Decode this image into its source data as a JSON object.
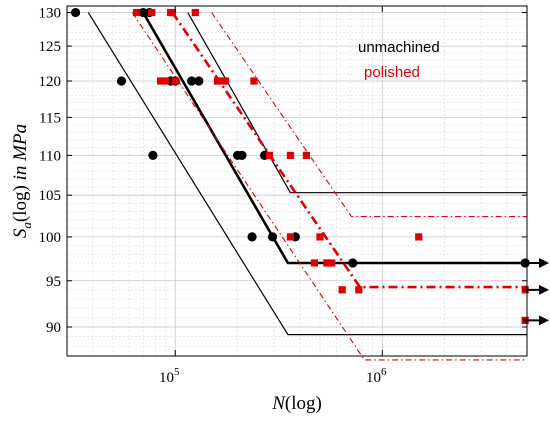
{
  "chart_data": {
    "type": "scatter",
    "title": "",
    "xlabel": "N(log)",
    "ylabel": "S_a(log) in MPa",
    "x_scale": "log",
    "y_scale": "log",
    "xlim": [
      30000,
      5000000
    ],
    "ylim": [
      87,
      131
    ],
    "x_ticks": [
      {
        "value": 100000,
        "base": "10",
        "exp": "5"
      },
      {
        "value": 1000000,
        "base": "10",
        "exp": "6"
      }
    ],
    "y_ticks": [
      90,
      95,
      100,
      105,
      110,
      115,
      120,
      125,
      130
    ],
    "grid": true,
    "legend_position": "top-right",
    "series": [
      {
        "name": "unmachined",
        "color": "#000000",
        "marker": "circle",
        "points": [
          [
            33000,
            130
          ],
          [
            55000,
            120
          ],
          [
            70000,
            130
          ],
          [
            75000,
            130
          ],
          [
            78000,
            110
          ],
          [
            95000,
            120
          ],
          [
            100000,
            120
          ],
          [
            120000,
            120
          ],
          [
            130000,
            120
          ],
          [
            200000,
            110
          ],
          [
            210000,
            110
          ],
          [
            235000,
            100
          ],
          [
            270000,
            110
          ],
          [
            295000,
            100
          ],
          [
            380000,
            100
          ],
          [
            720000,
            97
          ],
          [
            4900000,
            97
          ]
        ],
        "curves": [
          {
            "role": "median",
            "style": "solid",
            "width": 2.6,
            "points": [
              [
                70000,
                130
              ],
              [
                350000,
                97
              ],
              [
                5000000,
                97
              ]
            ]
          },
          {
            "role": "lower",
            "style": "solid",
            "width": 1.2,
            "points": [
              [
                38000,
                130
              ],
              [
                350000,
                89.2
              ],
              [
                5000000,
                89.2
              ]
            ]
          },
          {
            "role": "upper",
            "style": "solid",
            "width": 1.2,
            "points": [
              [
                115000,
                130
              ],
              [
                360000,
                105.3
              ],
              [
                5000000,
                105.3
              ]
            ]
          }
        ]
      },
      {
        "name": "polished",
        "color": "#e00000",
        "marker": "square",
        "points": [
          [
            65000,
            130
          ],
          [
            77000,
            130
          ],
          [
            95000,
            130
          ],
          [
            97000,
            130
          ],
          [
            125000,
            130
          ],
          [
            85000,
            120
          ],
          [
            90000,
            120
          ],
          [
            100000,
            120
          ],
          [
            160000,
            120
          ],
          [
            168000,
            120
          ],
          [
            175000,
            120
          ],
          [
            240000,
            120
          ],
          [
            285000,
            110
          ],
          [
            360000,
            110
          ],
          [
            430000,
            110
          ],
          [
            360000,
            100
          ],
          [
            500000,
            100
          ],
          [
            470000,
            97
          ],
          [
            540000,
            97
          ],
          [
            570000,
            97
          ],
          [
            640000,
            94
          ],
          [
            770000,
            94
          ],
          [
            1500000,
            100
          ],
          [
            4900000,
            94
          ],
          [
            4900000,
            90.7
          ]
        ],
        "curves": [
          {
            "role": "median",
            "style": "dashdot",
            "width": 2.6,
            "points": [
              [
                97000,
                130
              ],
              [
                780000,
                94.3
              ],
              [
                5000000,
                94.3
              ]
            ]
          },
          {
            "role": "lower",
            "style": "dashdot",
            "width": 1.1,
            "points": [
              [
                62000,
                130
              ],
              [
                820000,
                86.6
              ],
              [
                5000000,
                86.6
              ]
            ]
          },
          {
            "role": "upper",
            "style": "dashdot",
            "width": 1.1,
            "points": [
              [
                150000,
                130
              ],
              [
                710000,
                102.4
              ],
              [
                5000000,
                102.4
              ]
            ]
          }
        ]
      }
    ],
    "runouts": [
      {
        "y": 97,
        "color": "#000000"
      },
      {
        "y": 94,
        "color": "#000000"
      },
      {
        "y": 90.7,
        "color": "#000000"
      }
    ]
  }
}
